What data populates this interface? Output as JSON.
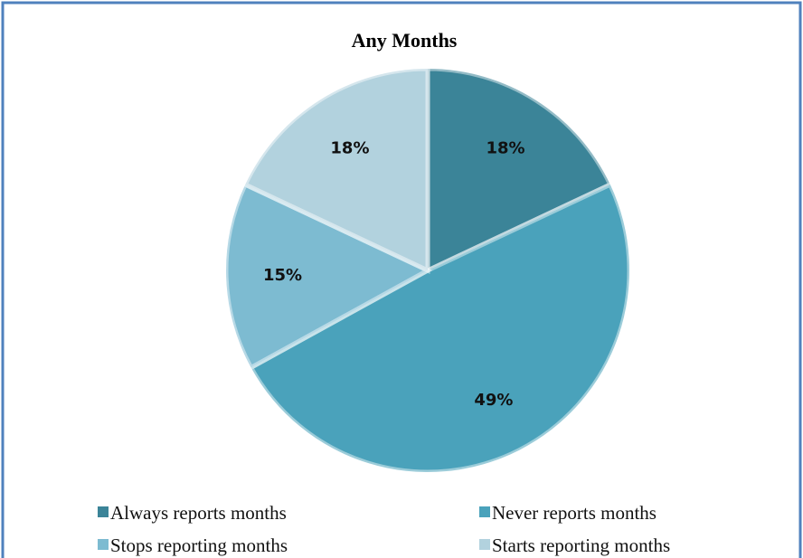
{
  "chart_data": {
    "type": "pie",
    "title": "Any Months",
    "categories": [
      "Always reports months",
      "Never reports months",
      "Stops reporting months",
      "Starts reporting months"
    ],
    "values": [
      18,
      49,
      15,
      18
    ],
    "value_labels": [
      "18%",
      "49%",
      "15%",
      "18%"
    ],
    "colors": [
      "#3b8498",
      "#4aa2bb",
      "#7dbbd1",
      "#b2d2de"
    ]
  }
}
